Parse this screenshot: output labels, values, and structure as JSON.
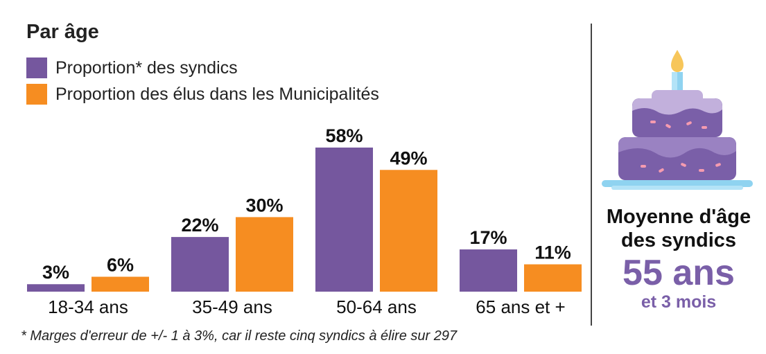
{
  "chart_data": {
    "type": "bar",
    "title": "Par âge",
    "categories": [
      "18-34 ans",
      "35-49 ans",
      "50-64 ans",
      "65 ans et +"
    ],
    "series": [
      {
        "name": "Proportion* des syndics",
        "values": [
          3,
          22,
          58,
          17
        ],
        "labels": [
          "3%",
          "22%",
          "58%",
          "17%"
        ],
        "color": "#75579e"
      },
      {
        "name": "Proportion des élus dans les Municipalités",
        "values": [
          6,
          30,
          49,
          11
        ],
        "labels": [
          "6%",
          "30%",
          "49%",
          "11%"
        ],
        "color": "#f68d21"
      }
    ],
    "ylim": [
      0,
      58
    ],
    "grid": false,
    "legend": "top-left"
  },
  "footnote": "* Marges d'erreur de +/- 1 à 3%, car il reste cinq syndics à élire sur 297",
  "side_panel": {
    "label": "Moyenne d'âge des syndics",
    "value": "55 ans",
    "extra": "et 3 mois",
    "icon": "birthday-cake-icon"
  }
}
